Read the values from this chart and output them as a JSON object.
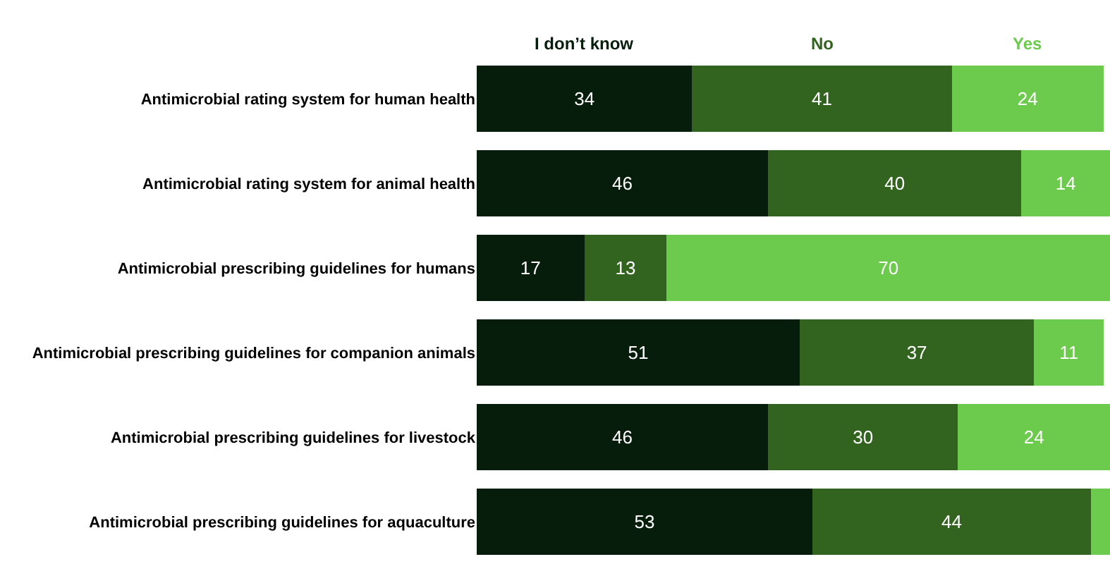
{
  "chart_data": {
    "type": "bar",
    "orientation": "horizontal",
    "stacked": true,
    "legend": "top",
    "tick_labels": "y",
    "xlim": [
      0,
      100
    ],
    "categories": [
      "Antimicrobial rating system for human health",
      "Antimicrobial rating system for animal health",
      "Antimicrobial prescribing guidelines for humans",
      "Antimicrobial prescribing guidelines for companion animals",
      "Antimicrobial prescribing guidelines for livestock",
      "Antimicrobial prescribing guidelines for aquaculture"
    ],
    "series": [
      {
        "name": "I don’t know",
        "color": "#071d0b",
        "values": [
          34,
          46,
          17,
          51,
          46,
          53
        ],
        "value_labels": [
          "34",
          "46",
          "17",
          "51",
          "46",
          "53"
        ]
      },
      {
        "name": "No",
        "color": "#326420",
        "values": [
          41,
          40,
          13,
          37,
          30,
          44
        ],
        "value_labels": [
          "41",
          "40",
          "13",
          "37",
          "30",
          "44"
        ]
      },
      {
        "name": "Yes",
        "color": "#6cca4c",
        "values": [
          24,
          14,
          70,
          11,
          24,
          3
        ],
        "value_labels": [
          "24",
          "14",
          "70",
          "11",
          "24",
          null
        ]
      }
    ]
  }
}
